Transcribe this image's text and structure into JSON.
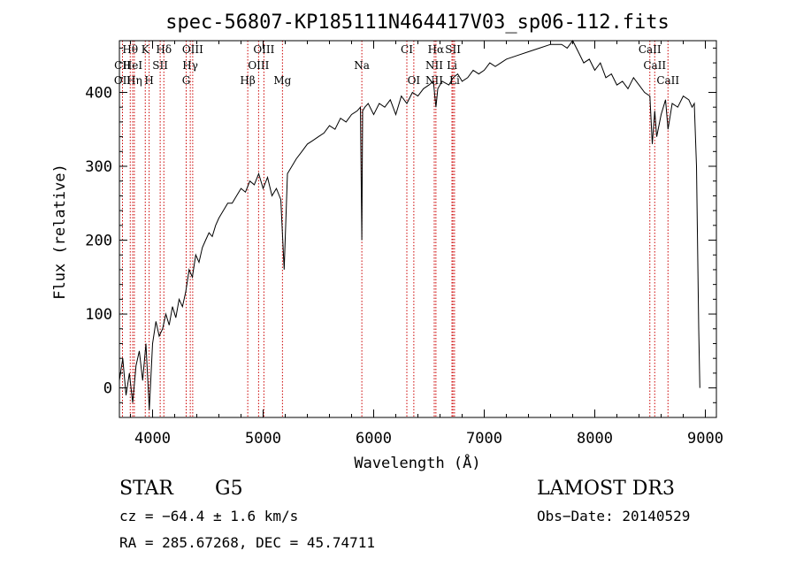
{
  "chart_data": {
    "type": "line",
    "title": "spec-56807-KP185111N464417V03_sp06-112.fits",
    "xlabel": "Wavelength (Å)",
    "ylabel": "Flux (relative)",
    "xlim": [
      3700,
      9100
    ],
    "ylim": [
      -40,
      470
    ],
    "xticks": [
      4000,
      5000,
      6000,
      7000,
      8000,
      9000
    ],
    "xtick_labels": [
      "4000",
      "5000",
      "6000",
      "7000",
      "8000",
      "9000"
    ],
    "yticks": [
      0,
      100,
      200,
      300,
      400
    ],
    "ytick_labels": [
      "0",
      "100",
      "200",
      "300",
      "400"
    ],
    "series": [
      {
        "name": "spectrum",
        "x": [
          3700,
          3730,
          3760,
          3790,
          3820,
          3850,
          3880,
          3910,
          3940,
          3970,
          4000,
          4030,
          4060,
          4090,
          4120,
          4150,
          4180,
          4210,
          4240,
          4270,
          4300,
          4330,
          4360,
          4390,
          4420,
          4450,
          4480,
          4510,
          4540,
          4570,
          4600,
          4640,
          4680,
          4720,
          4760,
          4800,
          4840,
          4880,
          4920,
          4960,
          5000,
          5040,
          5080,
          5120,
          5160,
          5190,
          5220,
          5260,
          5300,
          5350,
          5400,
          5450,
          5500,
          5550,
          5600,
          5650,
          5700,
          5750,
          5800,
          5850,
          5880,
          5893,
          5900,
          5920,
          5950,
          6000,
          6050,
          6100,
          6150,
          6200,
          6250,
          6300,
          6350,
          6400,
          6450,
          6500,
          6540,
          6563,
          6580,
          6620,
          6680,
          6720,
          6760,
          6800,
          6850,
          6900,
          6950,
          7000,
          7050,
          7100,
          7150,
          7200,
          7300,
          7400,
          7500,
          7600,
          7700,
          7750,
          7800,
          7850,
          7900,
          7950,
          8000,
          8050,
          8100,
          8150,
          8200,
          8250,
          8300,
          8350,
          8400,
          8450,
          8498,
          8520,
          8542,
          8560,
          8600,
          8640,
          8662,
          8700,
          8750,
          8800,
          8850,
          8880,
          8900,
          8920,
          8940,
          8950
        ],
        "y": [
          10,
          40,
          -10,
          20,
          -20,
          30,
          50,
          10,
          60,
          -30,
          60,
          90,
          70,
          80,
          100,
          85,
          110,
          95,
          120,
          110,
          130,
          160,
          150,
          180,
          170,
          190,
          200,
          210,
          205,
          220,
          230,
          240,
          250,
          250,
          260,
          270,
          265,
          280,
          275,
          290,
          270,
          285,
          260,
          270,
          255,
          160,
          290,
          300,
          310,
          320,
          330,
          335,
          340,
          345,
          355,
          350,
          365,
          360,
          370,
          375,
          380,
          200,
          375,
          380,
          385,
          370,
          385,
          380,
          390,
          370,
          395,
          385,
          400,
          395,
          405,
          410,
          415,
          380,
          405,
          415,
          410,
          420,
          425,
          415,
          420,
          430,
          425,
          430,
          440,
          435,
          440,
          445,
          450,
          455,
          460,
          465,
          465,
          460,
          470,
          455,
          440,
          445,
          430,
          440,
          420,
          425,
          410,
          415,
          405,
          420,
          410,
          400,
          395,
          330,
          375,
          340,
          370,
          390,
          350,
          385,
          380,
          395,
          390,
          380,
          385,
          300,
          80,
          0
        ]
      }
    ],
    "lines": [
      {
        "name": "CII",
        "x": 3728,
        "label": "CII",
        "row": 1
      },
      {
        "name": "OII",
        "x": 3728,
        "label": "OII",
        "row": 2
      },
      {
        "name": "H-theta",
        "x": 3798,
        "label": "Hθ",
        "row": 0
      },
      {
        "name": "HeI",
        "x": 3820,
        "label": "HeI",
        "row": 1
      },
      {
        "name": "H-eta",
        "x": 3835,
        "label": "Hη",
        "row": 2
      },
      {
        "name": "K",
        "x": 3934,
        "label": "K",
        "row": 0
      },
      {
        "name": "H",
        "x": 3969,
        "label": "H",
        "row": 2
      },
      {
        "name": "SII",
        "x": 4069,
        "label": "SII",
        "row": 1
      },
      {
        "name": "H-delta",
        "x": 4102,
        "label": "Hδ",
        "row": 0
      },
      {
        "name": "G",
        "x": 4304,
        "label": "G",
        "row": 2
      },
      {
        "name": "H-gamma",
        "x": 4341,
        "label": "Hγ",
        "row": 1
      },
      {
        "name": "OIII-a",
        "x": 4363,
        "label": "OIII",
        "row": 0
      },
      {
        "name": "H-beta",
        "x": 4861,
        "label": "Hβ",
        "row": 2
      },
      {
        "name": "OIII-b",
        "x": 4959,
        "label": "OIII",
        "row": 1
      },
      {
        "name": "OIII-c",
        "x": 5007,
        "label": "OIII",
        "row": 0
      },
      {
        "name": "Mg",
        "x": 5175,
        "label": "Mg",
        "row": 2
      },
      {
        "name": "Na",
        "x": 5893,
        "label": "Na",
        "row": 1
      },
      {
        "name": "CI",
        "x": 6300,
        "label": "CI",
        "row": 0
      },
      {
        "name": "OI",
        "x": 6363,
        "label": "OI",
        "row": 2
      },
      {
        "name": "NII-a",
        "x": 6548,
        "label": "NII",
        "row": 1
      },
      {
        "name": "NII-b",
        "x": 6548,
        "label": "NII",
        "row": 2
      },
      {
        "name": "H-alpha",
        "x": 6563,
        "label": "Hα",
        "row": 0
      },
      {
        "name": "SII-b",
        "x": 6717,
        "label": "SII",
        "row": 0
      },
      {
        "name": "Li",
        "x": 6708,
        "label": "Li",
        "row": 1
      },
      {
        "name": "Li-b",
        "x": 6731,
        "label": "Li",
        "row": 2
      },
      {
        "name": "CaII-a",
        "x": 8498,
        "label": "CaII",
        "row": 0
      },
      {
        "name": "CaII-b",
        "x": 8542,
        "label": "CaII",
        "row": 1
      },
      {
        "name": "CaII-c",
        "x": 8662,
        "label": "CaII",
        "row": 2
      }
    ]
  },
  "info": {
    "class": "STAR",
    "subclass": "G5",
    "survey": "LAMOST DR3",
    "cz": "cz = −64.4 ± 1.6 km/s",
    "obs_date": "Obs−Date: 20140529",
    "coords": "RA = 285.67268, DEC =  45.74711"
  },
  "colors": {
    "spectrum": "#000000",
    "line_marker": "#cc0000",
    "axes": "#000000"
  }
}
